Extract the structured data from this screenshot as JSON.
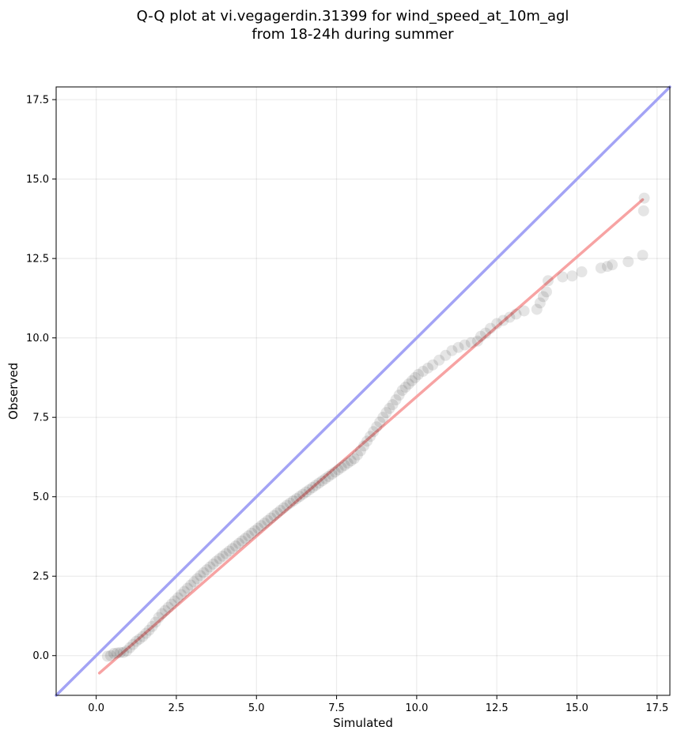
{
  "chart_data": {
    "type": "scatter",
    "title_lines": [
      "Q-Q plot at vi.vegagerdin.31399 for wind_speed_at_10m_agl",
      "from 18-24h during summer"
    ],
    "xlabel": "Simulated",
    "ylabel": "Observed",
    "xlim": [
      -1.25,
      17.9
    ],
    "ylim": [
      -1.25,
      17.9
    ],
    "xticks": [
      0.0,
      2.5,
      5.0,
      7.5,
      10.0,
      12.5,
      15.0,
      17.5
    ],
    "yticks": [
      0.0,
      2.5,
      5.0,
      7.5,
      10.0,
      12.5,
      15.0,
      17.5
    ],
    "xtick_labels": [
      "0.0",
      "2.5",
      "5.0",
      "7.5",
      "10.0",
      "12.5",
      "15.0",
      "17.5"
    ],
    "ytick_labels": [
      "0.0",
      "2.5",
      "5.0",
      "7.5",
      "10.0",
      "12.5",
      "15.0",
      "17.5"
    ],
    "grid": true,
    "identity_line": {
      "color": "#a3a3f5",
      "from": [
        -1.25,
        -1.25
      ],
      "to": [
        17.9,
        17.9
      ]
    },
    "fit_line": {
      "color": "#f7a3a3",
      "from": [
        0.1,
        -0.55
      ],
      "to": [
        17.05,
        14.35
      ]
    },
    "points_color": "#000000",
    "points": [
      [
        0.35,
        -0.02
      ],
      [
        0.45,
        0.0
      ],
      [
        0.55,
        0.07
      ],
      [
        0.65,
        0.08
      ],
      [
        0.75,
        0.1
      ],
      [
        0.85,
        0.1
      ],
      [
        0.95,
        0.15
      ],
      [
        1.05,
        0.25
      ],
      [
        1.15,
        0.35
      ],
      [
        1.25,
        0.45
      ],
      [
        1.35,
        0.52
      ],
      [
        1.45,
        0.6
      ],
      [
        1.55,
        0.7
      ],
      [
        1.65,
        0.8
      ],
      [
        1.75,
        0.92
      ],
      [
        1.85,
        1.05
      ],
      [
        1.95,
        1.2
      ],
      [
        2.05,
        1.32
      ],
      [
        2.15,
        1.42
      ],
      [
        2.25,
        1.52
      ],
      [
        2.35,
        1.62
      ],
      [
        2.45,
        1.72
      ],
      [
        2.55,
        1.82
      ],
      [
        2.65,
        1.92
      ],
      [
        2.75,
        2.02
      ],
      [
        2.85,
        2.12
      ],
      [
        2.95,
        2.22
      ],
      [
        3.05,
        2.32
      ],
      [
        3.15,
        2.42
      ],
      [
        3.25,
        2.52
      ],
      [
        3.35,
        2.61
      ],
      [
        3.45,
        2.7
      ],
      [
        3.55,
        2.79
      ],
      [
        3.65,
        2.88
      ],
      [
        3.75,
        2.97
      ],
      [
        3.85,
        3.05
      ],
      [
        3.95,
        3.13
      ],
      [
        4.05,
        3.21
      ],
      [
        4.15,
        3.29
      ],
      [
        4.25,
        3.37
      ],
      [
        4.35,
        3.45
      ],
      [
        4.45,
        3.53
      ],
      [
        4.55,
        3.61
      ],
      [
        4.65,
        3.69
      ],
      [
        4.75,
        3.77
      ],
      [
        4.85,
        3.85
      ],
      [
        4.95,
        3.93
      ],
      [
        5.05,
        4.01
      ],
      [
        5.15,
        4.09
      ],
      [
        5.25,
        4.17
      ],
      [
        5.35,
        4.25
      ],
      [
        5.45,
        4.33
      ],
      [
        5.55,
        4.41
      ],
      [
        5.65,
        4.49
      ],
      [
        5.75,
        4.57
      ],
      [
        5.85,
        4.65
      ],
      [
        5.95,
        4.73
      ],
      [
        6.05,
        4.8
      ],
      [
        6.15,
        4.87
      ],
      [
        6.25,
        4.94
      ],
      [
        6.35,
        5.01
      ],
      [
        6.45,
        5.08
      ],
      [
        6.55,
        5.15
      ],
      [
        6.65,
        5.22
      ],
      [
        6.75,
        5.29
      ],
      [
        6.85,
        5.36
      ],
      [
        6.95,
        5.43
      ],
      [
        7.05,
        5.5
      ],
      [
        7.15,
        5.57
      ],
      [
        7.25,
        5.64
      ],
      [
        7.35,
        5.71
      ],
      [
        7.45,
        5.78
      ],
      [
        7.55,
        5.85
      ],
      [
        7.65,
        5.92
      ],
      [
        7.75,
        5.99
      ],
      [
        7.85,
        6.06
      ],
      [
        7.95,
        6.13
      ],
      [
        8.05,
        6.2
      ],
      [
        8.15,
        6.32
      ],
      [
        8.25,
        6.45
      ],
      [
        8.35,
        6.6
      ],
      [
        8.45,
        6.75
      ],
      [
        8.55,
        6.9
      ],
      [
        8.65,
        7.05
      ],
      [
        8.75,
        7.2
      ],
      [
        8.85,
        7.35
      ],
      [
        8.95,
        7.5
      ],
      [
        9.05,
        7.65
      ],
      [
        9.15,
        7.78
      ],
      [
        9.25,
        7.9
      ],
      [
        9.35,
        8.05
      ],
      [
        9.45,
        8.2
      ],
      [
        9.55,
        8.35
      ],
      [
        9.65,
        8.45
      ],
      [
        9.75,
        8.55
      ],
      [
        9.85,
        8.65
      ],
      [
        9.95,
        8.75
      ],
      [
        10.05,
        8.85
      ],
      [
        10.2,
        8.95
      ],
      [
        10.35,
        9.05
      ],
      [
        10.5,
        9.15
      ],
      [
        10.7,
        9.3
      ],
      [
        10.9,
        9.45
      ],
      [
        11.1,
        9.6
      ],
      [
        11.3,
        9.7
      ],
      [
        11.5,
        9.78
      ],
      [
        11.7,
        9.85
      ],
      [
        11.9,
        9.9
      ],
      [
        12.0,
        10.05
      ],
      [
        12.15,
        10.15
      ],
      [
        12.3,
        10.3
      ],
      [
        12.5,
        10.45
      ],
      [
        12.7,
        10.55
      ],
      [
        12.9,
        10.65
      ],
      [
        13.1,
        10.75
      ],
      [
        13.35,
        10.85
      ],
      [
        13.75,
        10.9
      ],
      [
        13.85,
        11.1
      ],
      [
        13.95,
        11.3
      ],
      [
        14.05,
        11.45
      ],
      [
        14.1,
        11.8
      ],
      [
        14.55,
        11.92
      ],
      [
        14.85,
        11.95
      ],
      [
        15.15,
        12.08
      ],
      [
        15.75,
        12.2
      ],
      [
        15.95,
        12.25
      ],
      [
        16.1,
        12.3
      ],
      [
        16.6,
        12.4
      ],
      [
        17.05,
        12.6
      ],
      [
        17.08,
        14.0
      ],
      [
        17.1,
        14.4
      ]
    ]
  }
}
